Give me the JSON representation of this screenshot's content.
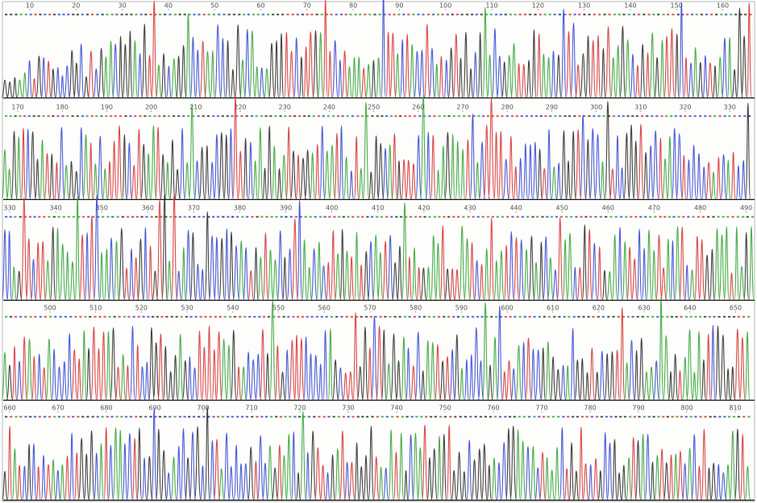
{
  "rows": [
    {
      "positions": [
        10,
        20,
        30,
        40,
        50,
        60,
        70,
        80,
        90,
        100,
        110,
        120,
        130,
        140,
        150,
        160
      ]
    },
    {
      "positions": [
        170,
        180,
        190,
        200,
        210,
        220,
        230,
        240,
        250,
        260,
        270,
        280,
        290,
        300,
        310,
        320,
        330
      ]
    },
    {
      "positions": [
        330,
        340,
        350,
        360,
        370,
        380,
        390,
        400,
        410,
        420,
        430,
        440,
        450,
        460,
        470,
        480,
        490
      ]
    },
    {
      "positions": [
        500,
        510,
        520,
        530,
        540,
        550,
        560,
        570,
        580,
        590,
        600,
        610,
        620,
        630,
        640,
        650
      ]
    },
    {
      "positions": [
        660,
        670,
        680,
        690,
        700,
        710,
        720,
        730,
        740,
        750,
        760,
        770,
        780,
        790,
        800,
        810
      ]
    }
  ]
}
